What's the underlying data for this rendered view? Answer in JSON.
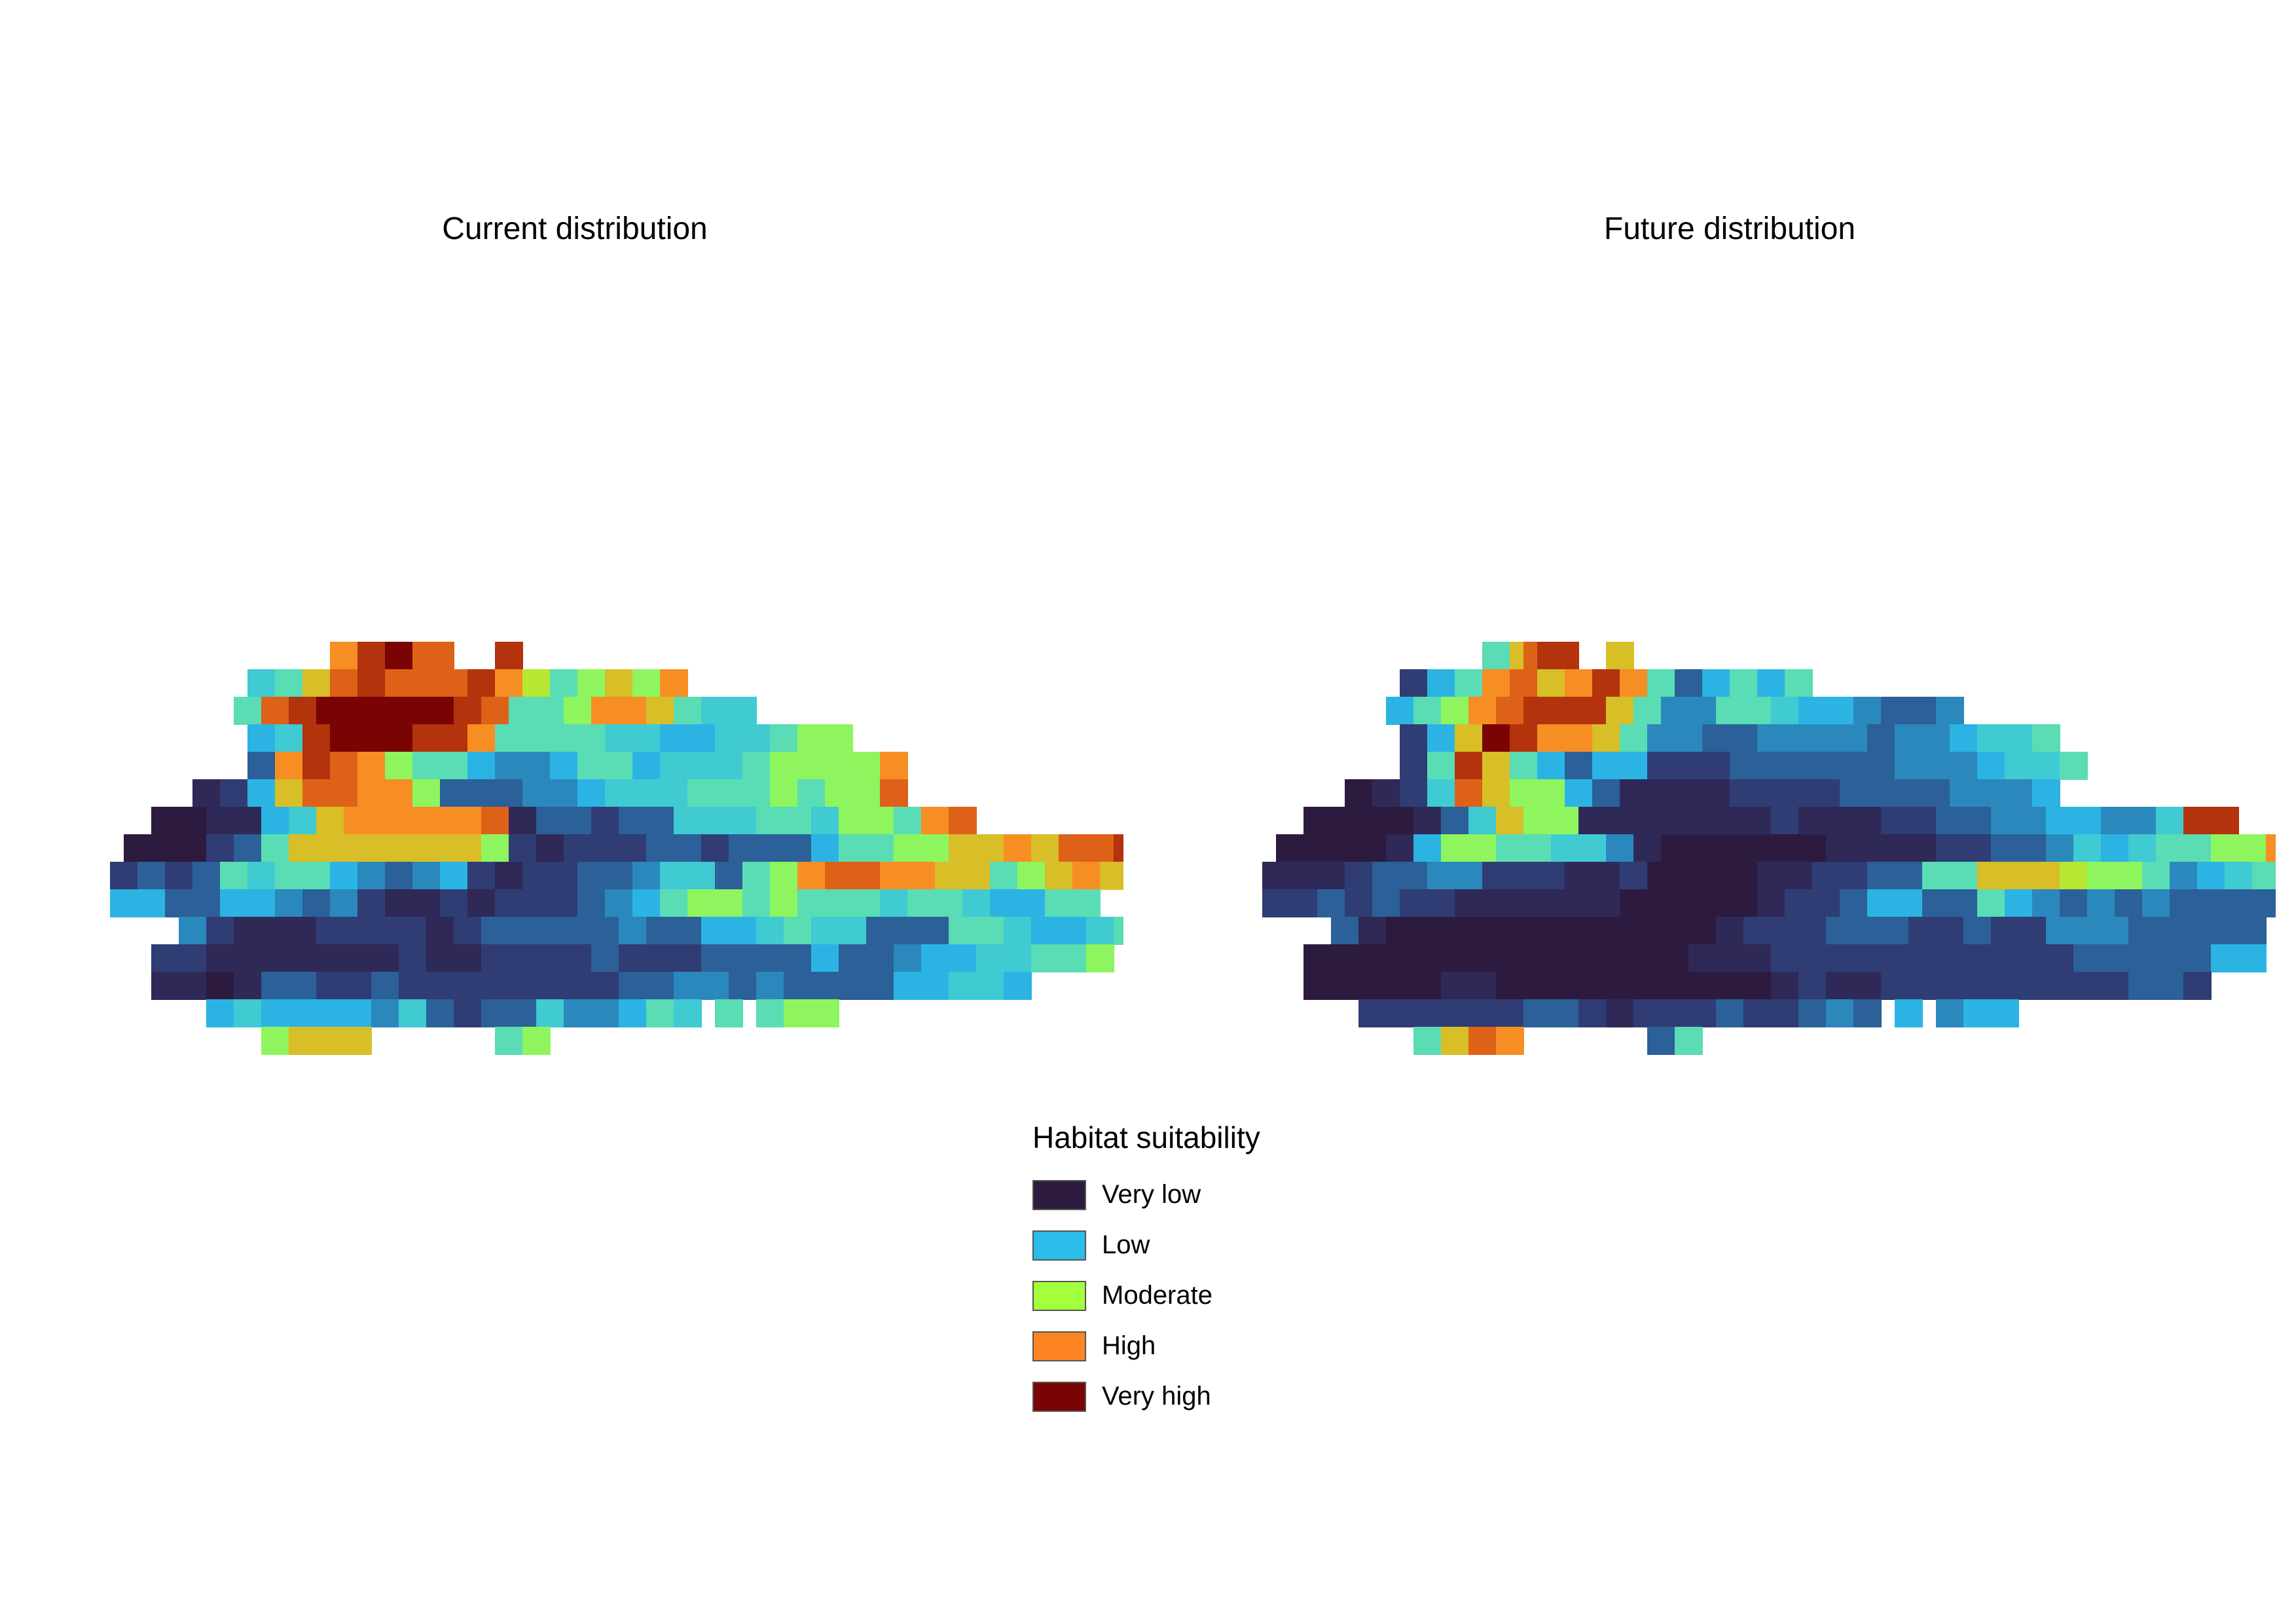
{
  "panels": [
    {
      "title": "Current distribution",
      "rows": [
        "                  CCEEFFDD    E",
        "            7 8 B D E D D D E C A 8 9 B 9 C",
        "           8 D E F F F F F E D 8 8 9 C C B 8 7 7",
        "            6 7 E F F F E E C 8 8 8 8 7 7 6 6 7 7 8 9 9",
        "            4 C E D C 9 8 8 6 5 5 6 8 8 6 7 7 7 8 9 9 9 9 C",
        "        2 3 6 B D D C C 9 4 4 4 5 5 6 7 7 7 8 8 8 9 8 9 9 D",
        "     1 1 2 2 6 7 B C C C C C D 2 4 4 3 4 4 7 7 7 8 8 7 9 9 8 C D",
        "   1 1 1 3 4 8 B B B B B B B 9 3 2 3 3 3 4 4 3 4 4 4 6 8 8 9 9 B B C B D D E",
        "  3 4 3 4 8 7 8 8 6 5 4 5 6 3 2 3 3 4 4 5 7 7 4 8 9 C D D C C B B 8 9 B C B",
        "  6 6 4 4 6 6 5 4 5 3 2 2 3 2 3 3 3 4 5 6 8 9 9 8 9 8 8 8 7 8 8 7 6 6 8 8    8",
        "       5 3 2 2 2 3 3 3 3 2 3 4 4 4 4 4 5 4 4 6 6 7 8 7 7 4 4 4 8 8 7 6 6 7 8 8",
        "     3 3 2 2 2 2 2 2 2 3 2 2 3 3 3 3 4 3 3 3 4 4 4 4 6 4 4 5 6 6 7 7 8 8 9",
        "     2 2 1 2 4 4 3 3 4 3 3 3 3 3 3 3 3 4 4 5 5 4 5 4 4 4 4 6 6 7 7 6",
        "         6 7 6 6 6 6 5 7 4 3 4 4 7 5 5 6 8 7  8  8 9 9",
        "             9 B B B          8 9"
      ]
    },
    {
      "title": "Future distribution",
      "rows": [
        "                  88BDEE   B",
        "            3 6 8 C D B C E C 8 4 6 8 6 8",
        "           6 8 9 C D E E E B 8 5 5 8 8 7 6 6 5 4 4 5",
        "            3 6 B F E C C B 8 5 5 4 4 5 5 5 5 4 5 5 6 7 7 8",
        "            3 8 E B 8 6 4 6 6 3 3 3 4 4 4 4 4 4 5 5 5 6 7 7 8",
        "        1 2 3 7 D B 9 9 6 4 2 2 2 2 3 3 3 3 4 4 4 4 5 5 5 6",
        "     1 1 1 1 2 4 7 B 9 9 2 2 2 2 2 2 2 3 2 2 2 3 3 4 4 5 5 6 6 5 5 7 E E",
        "   1 1 1 1 2 6 9 9 8 8 7 7 5 2 1 1 1 1 1 1 2 2 2 2 3 3 4 4 5 7 6 7 8 8 9 9 C E C E",
        "  2 2 2 3 4 4 5 5 3 3 3 2 2 3 1 1 1 1 2 2 3 3 4 4 8 8 B B B A 9 9 8 5 6 7 8 8",
        "  3 3 4 3 4 3 3 2 2 2 2 2 2 1 1 1 1 1 2 3 3 4 6 6 4 4 8 6 5 4 5 4 5 4 4 4 4   4",
        "       4 2 1 1 1 1 1 1 1 1 1 1 1 1 2 3 3 3 4 4 4 3 3 4 3 3 5 5 5 4 4 4 4 4",
        "     1 1 1 1 1 1 1 1 1 1 1 1 1 1 2 2 2 3 3 3 3 3 3 3 3 3 3 3 4 4 4 4 4 6 6",
        "     1 1 1 1 1 2 2 1 1 1 1 1 1 1 1 1 1 2 3 2 2 3 3 3 3 3 3 3 3 3 4 4 3",
        "         3 3 3 3 3 3 4 4 3 2 3 3 3 4 3 3 4 5 4  6  5 6 6",
        "             8 B D C          4 8"
      ]
    }
  ],
  "legend": {
    "title": "Habitat suitability",
    "items": [
      {
        "label": "Very low",
        "color": "#2d1b3f"
      },
      {
        "label": "Low",
        "color": "#2bbcea"
      },
      {
        "label": "Moderate",
        "color": "#a4ff3c"
      },
      {
        "label": "High",
        "color": "#fc8423"
      },
      {
        "label": "Very high",
        "color": "#7a0403"
      }
    ]
  }
}
